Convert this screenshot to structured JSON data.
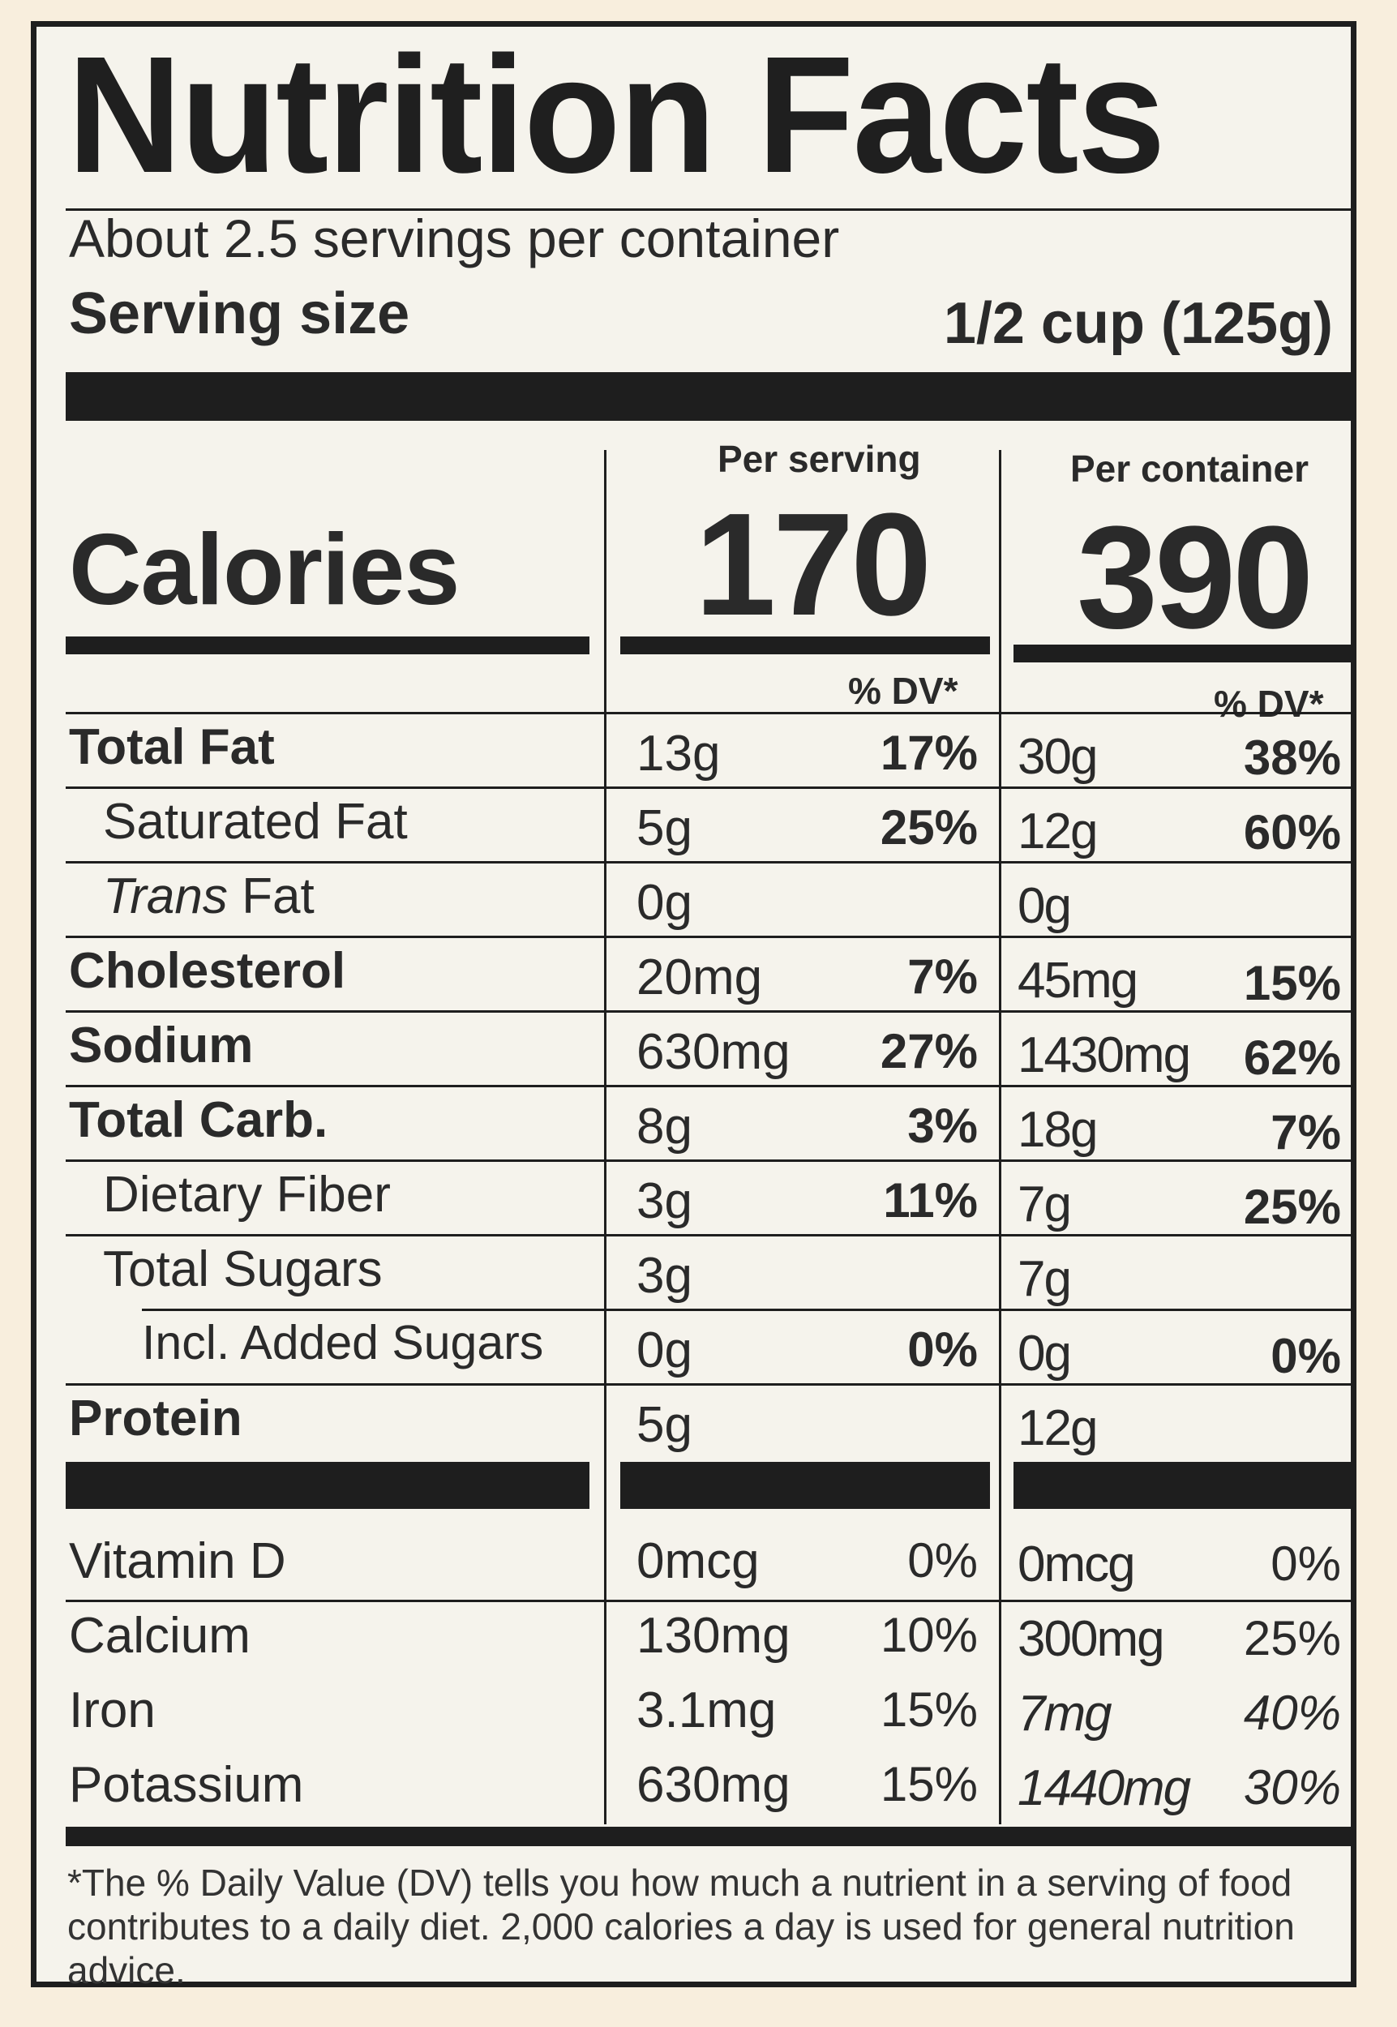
{
  "title": "Nutrition Facts",
  "servings_per_container": "About 2.5 servings per container",
  "serving_size": {
    "label": "Serving size",
    "value": "1/2 cup (125g)"
  },
  "columns": {
    "per_serving": "Per serving",
    "per_container": "Per container"
  },
  "calories": {
    "label": "Calories",
    "per_serving": "170",
    "per_container": "390"
  },
  "dv_header": "% DV*",
  "nutrients": [
    {
      "label": "Total Fat",
      "style": "bold",
      "serving_amount": "13g",
      "serving_dv": "17%",
      "container_amount": "30g",
      "container_dv": "38%"
    },
    {
      "label": "Saturated Fat",
      "style": "indent",
      "serving_amount": "5g",
      "serving_dv": "25%",
      "container_amount": "12g",
      "container_dv": "60%"
    },
    {
      "label_italic": "Trans",
      "label": " Fat",
      "style": "indent",
      "serving_amount": "0g",
      "serving_dv": "",
      "container_amount": "0g",
      "container_dv": ""
    },
    {
      "label": "Cholesterol",
      "style": "bold",
      "serving_amount": "20mg",
      "serving_dv": "7%",
      "container_amount": "45mg",
      "container_dv": "15%"
    },
    {
      "label": "Sodium",
      "style": "bold",
      "serving_amount": "630mg",
      "serving_dv": "27%",
      "container_amount": "1430mg",
      "container_dv": "62%"
    },
    {
      "label": "Total Carb.",
      "style": "bold",
      "serving_amount": "8g",
      "serving_dv": "3%",
      "container_amount": "18g",
      "container_dv": "7%"
    },
    {
      "label": "Dietary Fiber",
      "style": "indent",
      "serving_amount": "3g",
      "serving_dv": "11%",
      "container_amount": "7g",
      "container_dv": "25%"
    },
    {
      "label": "Total Sugars",
      "style": "indent",
      "serving_amount": "3g",
      "serving_dv": "",
      "container_amount": "7g",
      "container_dv": ""
    },
    {
      "label": "Incl. Added Sugars",
      "style": "indent2",
      "serving_amount": "0g",
      "serving_dv": "0%",
      "container_amount": "0g",
      "container_dv": "0%"
    },
    {
      "label": "Protein",
      "style": "bold",
      "serving_amount": "5g",
      "serving_dv": "",
      "container_amount": "12g",
      "container_dv": ""
    }
  ],
  "micronutrients": [
    {
      "label": "Vitamin D",
      "serving_amount": "0mcg",
      "serving_dv": "0%",
      "container_amount": "0mcg",
      "container_dv": "0%"
    },
    {
      "label": "Calcium",
      "serving_amount": "130mg",
      "serving_dv": "10%",
      "container_amount": "300mg",
      "container_dv": "25%"
    },
    {
      "label": "Iron",
      "serving_amount": "3.1mg",
      "serving_dv": "15%",
      "container_amount": "7mg",
      "container_dv": "40%"
    },
    {
      "label": "Potassium",
      "serving_amount": "630mg",
      "serving_dv": "15%",
      "container_amount": "1440mg",
      "container_dv": "30%"
    }
  ],
  "footnote": "*The % Daily Value (DV) tells you how much a nutrient in a serving of food contributes to a daily diet. 2,000 calories a day is used for general nutrition advice."
}
